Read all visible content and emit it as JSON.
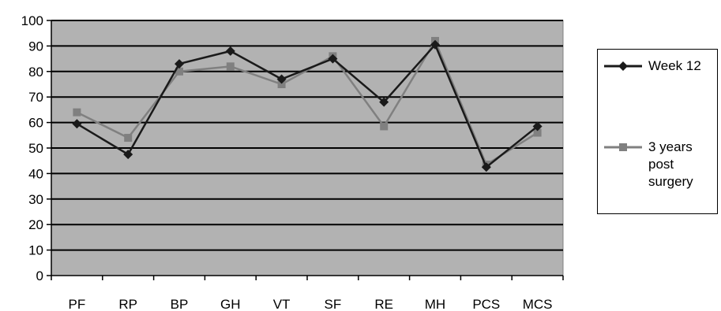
{
  "chart_data": {
    "type": "line",
    "categories": [
      "PF",
      "RP",
      "BP",
      "GH",
      "VT",
      "SF",
      "RE",
      "MH",
      "PCS",
      "MCS"
    ],
    "ylim": [
      0,
      100
    ],
    "yticks": [
      0,
      10,
      20,
      30,
      40,
      50,
      60,
      70,
      80,
      90,
      100
    ],
    "grid": true,
    "legend_position": "right",
    "series": [
      {
        "name": "Week 12",
        "values": [
          59.5,
          47.5,
          83,
          88,
          77,
          85,
          68,
          90.5,
          42.5,
          58.5
        ],
        "color": "#1a1a1a",
        "marker": "diamond"
      },
      {
        "name": "3 years post surgery",
        "values": [
          64,
          54,
          80,
          82,
          75,
          86,
          58.5,
          92,
          43.5,
          56
        ],
        "color": "#808080",
        "marker": "square"
      }
    ],
    "plot_background": "#b2b2b2"
  }
}
